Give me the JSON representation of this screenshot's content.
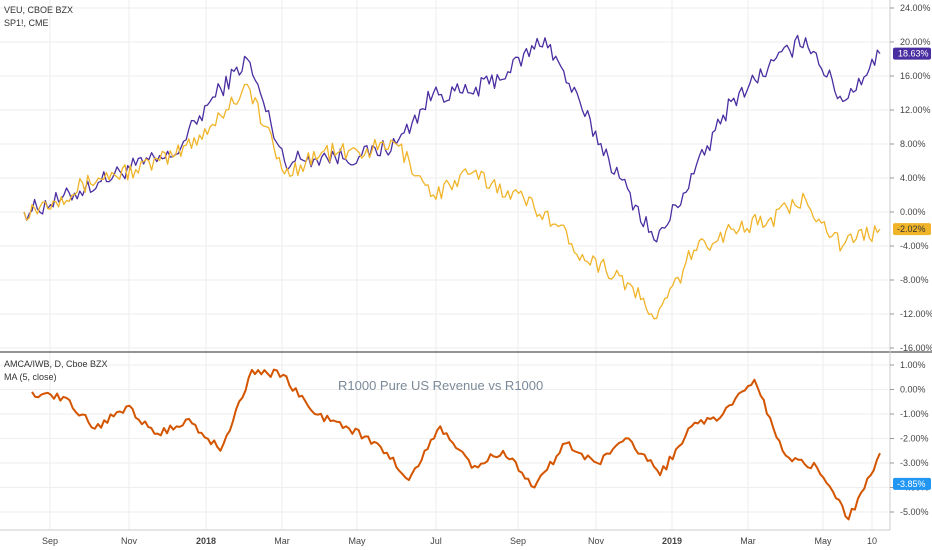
{
  "colors": {
    "veu": "#f0b429",
    "sp1": "#4a2ea1",
    "ratio": "#d45500",
    "badge_veu": "#f0b429",
    "badge_sp1": "#4a2ea1",
    "badge_ratio": "#2196f3",
    "grid": "#eeeeee",
    "divider": "#555555"
  },
  "chart_data": [
    {
      "type": "line",
      "panel": "top",
      "legend": [
        "VEU, CBOE BZX",
        "SP1!, CME"
      ],
      "yticks": [
        24,
        20,
        16,
        12,
        8,
        4,
        0,
        -4,
        -8,
        -12,
        -16
      ],
      "ytick_labels": [
        "24.00%",
        "20.00%",
        "16.00%",
        "12.00%",
        "8.00%",
        "4.00%",
        "0.00%",
        "-4.00%",
        "-8.00%",
        "-12.00%",
        "-16.00%"
      ],
      "ylim": [
        -16,
        24
      ],
      "last_labels": {
        "sp1": "18.63%",
        "veu": "-2.02%"
      },
      "last_values": {
        "sp1": 18.63,
        "veu": -2.02
      },
      "x": [
        0,
        1,
        2,
        3,
        4,
        5,
        6,
        7,
        8,
        9,
        10,
        11,
        12,
        13,
        14,
        15,
        16,
        17,
        18,
        19,
        20,
        21,
        22,
        23
      ],
      "series": [
        {
          "name": "SP1!, CME",
          "key": "sp1",
          "values": [
            0,
            1.5,
            3.5,
            5.5,
            6.5,
            13,
            18,
            6,
            6.5,
            6.5,
            8,
            14,
            14,
            16.5,
            20.5,
            12,
            4,
            -3.5,
            4.5,
            13,
            17,
            20.5,
            13,
            18.63
          ]
        },
        {
          "name": "VEU, CBOE BZX",
          "key": "veu",
          "values": [
            0,
            1.8,
            4,
            5,
            6.5,
            10,
            15,
            4.5,
            7,
            7,
            8,
            2,
            4.5,
            2.5,
            0,
            -5,
            -7.5,
            -12.5,
            -4.5,
            -2,
            -1,
            1.5,
            -4,
            -2.02
          ]
        }
      ]
    },
    {
      "type": "line",
      "panel": "bottom",
      "legend": [
        "AMCA/IWB, D, Cboe BZX",
        "MA (5, close)"
      ],
      "annotation": "R1000 Pure US Revenue vs R1000",
      "yticks": [
        1,
        0,
        -1,
        -2,
        -3,
        -4,
        -5
      ],
      "ytick_labels": [
        "1.00%",
        "0.00%",
        "-1.00%",
        "-2.00%",
        "-3.00%",
        "-4.00%",
        "-5.00%"
      ],
      "ylim": [
        -5.8,
        1.6
      ],
      "last_label": "-3.85%",
      "last_value": -3.85,
      "x": [
        0,
        1,
        2,
        3,
        4,
        5,
        6,
        7,
        8,
        9,
        10,
        11,
        12,
        13,
        14,
        15,
        16,
        17,
        18,
        19,
        20,
        21,
        22,
        23,
        24,
        25,
        26,
        27
      ],
      "series": [
        {
          "name": "MA (5, close)",
          "key": "ratio",
          "values": [
            -0.1,
            -0.3,
            -1.6,
            -0.7,
            -1.8,
            -1.2,
            -2.5,
            0.8,
            0.6,
            -1.0,
            -1.5,
            -2.2,
            -3.7,
            -1.5,
            -3.2,
            -2.5,
            -4.0,
            -2.2,
            -3.0,
            -2.0,
            -3.5,
            -1.5,
            -1.0,
            0.4,
            -2.7,
            -3.2,
            -5.3,
            -2.6
          ]
        }
      ]
    }
  ],
  "xaxis": {
    "labels": [
      "Sep",
      "Nov",
      "2018",
      "Mar",
      "May",
      "Jul",
      "Sep",
      "Nov",
      "2019",
      "Mar",
      "May",
      "10"
    ],
    "bold": [
      "2018",
      "2019"
    ]
  }
}
